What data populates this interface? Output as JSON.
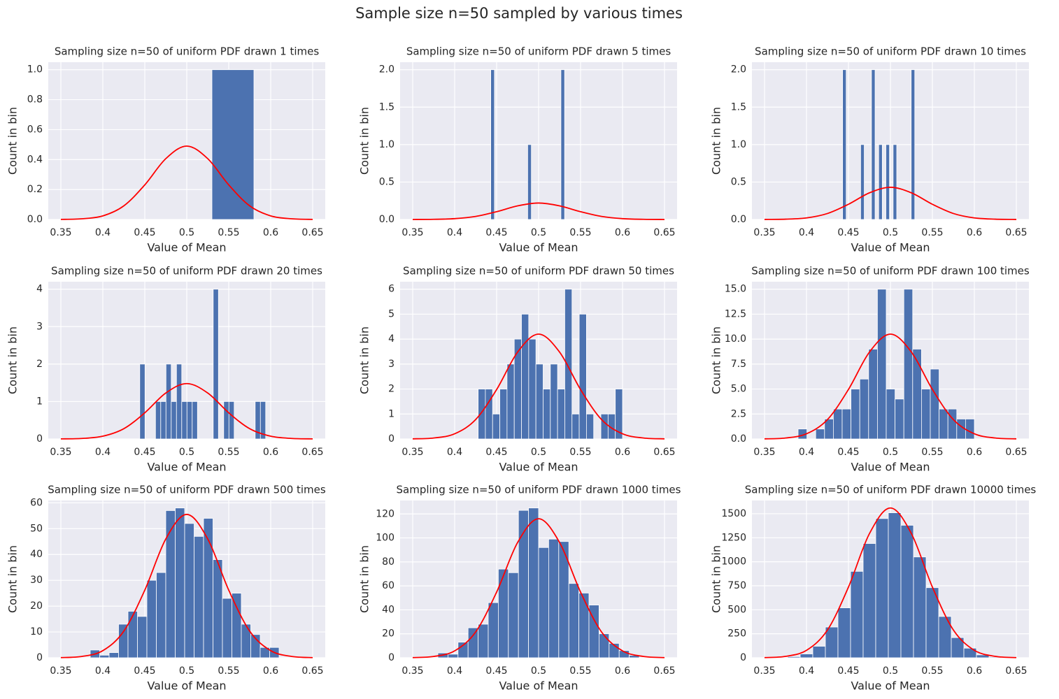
{
  "title": "Sample size n=50 sampled by various times",
  "chart_data": [
    {
      "type": "histogram",
      "title": "Sampling size n=50 of uniform PDF drawn 1 times",
      "x_label": "Value of Mean",
      "y_label": "Count in bin",
      "color": "#4c72b0",
      "grid": true,
      "bins": [
        0.53,
        0.58
      ],
      "counts": [
        1
      ],
      "xlim": [
        0.335,
        0.665
      ],
      "xticks": [
        0.35,
        0.4,
        0.45,
        0.5,
        0.55,
        0.6,
        0.65
      ],
      "ylim": [
        0,
        1.05
      ],
      "yticks": [
        {
          "value": 0,
          "label": "0.0"
        },
        0.2,
        0.4,
        0.6,
        0.8,
        {
          "value": 1,
          "label": "1.0"
        }
      ],
      "line": {
        "color": "#ff0000",
        "x": [
          0.35,
          0.375,
          0.4,
          0.425,
          0.45,
          0.475,
          0.5,
          0.525,
          0.55,
          0.575,
          0.6,
          0.625,
          0.65
        ],
        "values": [
          0.0006,
          0.0045,
          0.024,
          0.091,
          0.231,
          0.406,
          0.49,
          0.406,
          0.231,
          0.091,
          0.024,
          0.0045,
          0.0006
        ]
      }
    },
    {
      "type": "histogram",
      "title": "Sampling size n=50 of uniform PDF drawn 5 times",
      "x_label": "Value of Mean",
      "y_label": "Count in bin",
      "color": "#4c72b0",
      "grid": true,
      "bins": [
        0.443,
        0.4474,
        0.4518,
        0.4562,
        0.4606,
        0.465,
        0.4694,
        0.4738,
        0.4782,
        0.4826,
        0.487,
        0.4914,
        0.4958,
        0.5002,
        0.5046,
        0.509,
        0.5134,
        0.5178,
        0.5222,
        0.5266,
        0.531
      ],
      "counts": [
        2,
        0,
        0,
        0,
        0,
        0,
        0,
        0,
        0,
        0,
        1,
        0,
        0,
        0,
        0,
        0,
        0,
        0,
        0,
        2
      ],
      "xlim": [
        0.335,
        0.665
      ],
      "xticks": [
        0.35,
        0.4,
        0.45,
        0.5,
        0.55,
        0.6,
        0.65
      ],
      "ylim": [
        0,
        2.1
      ],
      "yticks": [
        {
          "value": 0,
          "label": "0.0"
        },
        0.5,
        {
          "value": 1,
          "label": "1.0"
        },
        1.5,
        {
          "value": 2,
          "label": "2.0"
        }
      ],
      "line": {
        "color": "#ff0000",
        "x": [
          0.35,
          0.375,
          0.4,
          0.425,
          0.45,
          0.475,
          0.5,
          0.525,
          0.55,
          0.575,
          0.6,
          0.625,
          0.65
        ],
        "values": [
          0.0003,
          0.002,
          0.011,
          0.041,
          0.104,
          0.182,
          0.22,
          0.182,
          0.104,
          0.041,
          0.011,
          0.002,
          0.0003
        ]
      }
    },
    {
      "type": "histogram",
      "title": "Sampling size n=50 of uniform PDF drawn 10 times",
      "x_label": "Value of Mean",
      "y_label": "Count in bin",
      "color": "#4c72b0",
      "grid": true,
      "bins": [
        0.443,
        0.4473,
        0.4516,
        0.4559,
        0.4602,
        0.4645,
        0.4688,
        0.4731,
        0.4774,
        0.4817,
        0.486,
        0.4903,
        0.4946,
        0.4989,
        0.5032,
        0.5075,
        0.5118,
        0.5161,
        0.5204,
        0.5247,
        0.529
      ],
      "counts": [
        2,
        0,
        0,
        0,
        0,
        1,
        0,
        0,
        2,
        0,
        1,
        0,
        1,
        0,
        1,
        0,
        0,
        0,
        0,
        2
      ],
      "xlim": [
        0.335,
        0.665
      ],
      "xticks": [
        0.35,
        0.4,
        0.45,
        0.5,
        0.55,
        0.6,
        0.65
      ],
      "ylim": [
        0,
        2.1
      ],
      "yticks": [
        {
          "value": 0,
          "label": "0.0"
        },
        0.5,
        {
          "value": 1,
          "label": "1.0"
        },
        1.5,
        {
          "value": 2,
          "label": "2.0"
        }
      ],
      "line": {
        "color": "#ff0000",
        "x": [
          0.35,
          0.375,
          0.4,
          0.425,
          0.45,
          0.475,
          0.5,
          0.525,
          0.55,
          0.575,
          0.6,
          0.625,
          0.65
        ],
        "values": [
          0.0005,
          0.004,
          0.021,
          0.08,
          0.203,
          0.356,
          0.43,
          0.356,
          0.203,
          0.08,
          0.021,
          0.004,
          0.0005
        ]
      }
    },
    {
      "type": "histogram",
      "title": "Sampling size n=50 of uniform PDF drawn 20 times",
      "x_label": "Value of Mean",
      "y_label": "Count in bin",
      "color": "#4c72b0",
      "grid": true,
      "bins": [
        0.444,
        0.45025,
        0.4565,
        0.46275,
        0.469,
        0.47525,
        0.4815,
        0.48775,
        0.494,
        0.50025,
        0.5065,
        0.51275,
        0.519,
        0.52525,
        0.5315,
        0.53775,
        0.544,
        0.55025,
        0.5565,
        0.56275,
        0.569,
        0.57525,
        0.5815,
        0.58775,
        0.594
      ],
      "counts": [
        2,
        0,
        0,
        1,
        1,
        2,
        1,
        2,
        1,
        1,
        1,
        0,
        0,
        0,
        4,
        0,
        1,
        1,
        0,
        0,
        0,
        0,
        1,
        1
      ],
      "xlim": [
        0.335,
        0.665
      ],
      "xticks": [
        0.35,
        0.4,
        0.45,
        0.5,
        0.55,
        0.6,
        0.65
      ],
      "ylim": [
        0,
        4.2
      ],
      "yticks": [
        0,
        1,
        2,
        3,
        4
      ],
      "line": {
        "color": "#ff0000",
        "x": [
          0.35,
          0.375,
          0.4,
          0.425,
          0.45,
          0.475,
          0.5,
          0.525,
          0.55,
          0.575,
          0.6,
          0.625,
          0.65
        ],
        "values": [
          0.002,
          0.014,
          0.074,
          0.274,
          0.699,
          1.227,
          1.48,
          1.227,
          0.699,
          0.274,
          0.074,
          0.014,
          0.002
        ]
      }
    },
    {
      "type": "histogram",
      "title": "Sampling size n=50 of uniform PDF drawn 50 times",
      "x_label": "Value of Mean",
      "y_label": "Count in bin",
      "color": "#4c72b0",
      "grid": true,
      "bins": [
        0.428,
        0.4366,
        0.4452,
        0.4538,
        0.4624,
        0.471,
        0.4796,
        0.4882,
        0.4968,
        0.5054,
        0.514,
        0.5226,
        0.5312,
        0.5398,
        0.5484,
        0.557,
        0.5656,
        0.5742,
        0.5828,
        0.5914,
        0.6
      ],
      "counts": [
        2,
        2,
        1,
        2,
        3,
        4,
        5,
        4,
        3,
        2,
        3,
        2,
        6,
        1,
        5,
        1,
        0,
        1,
        1,
        2
      ],
      "xlim": [
        0.335,
        0.665
      ],
      "xticks": [
        0.35,
        0.4,
        0.45,
        0.5,
        0.55,
        0.6,
        0.65
      ],
      "ylim": [
        0,
        6.3
      ],
      "yticks": [
        0,
        1,
        2,
        3,
        4,
        5,
        6
      ],
      "line": {
        "color": "#ff0000",
        "x": [
          0.35,
          0.375,
          0.4,
          0.425,
          0.45,
          0.475,
          0.5,
          0.525,
          0.55,
          0.575,
          0.6,
          0.625,
          0.65
        ],
        "values": [
          0.005,
          0.039,
          0.209,
          0.777,
          1.98,
          3.48,
          4.2,
          3.48,
          1.98,
          0.777,
          0.209,
          0.039,
          0.005
        ]
      }
    },
    {
      "type": "histogram",
      "title": "Sampling size n=50 of uniform PDF drawn 100 times",
      "x_label": "Value of Mean",
      "y_label": "Count in bin",
      "color": "#4c72b0",
      "grid": true,
      "bins": [
        0.39,
        0.4005,
        0.411,
        0.4215,
        0.432,
        0.4425,
        0.453,
        0.4635,
        0.474,
        0.4845,
        0.495,
        0.5055,
        0.516,
        0.5265,
        0.537,
        0.5475,
        0.558,
        0.5685,
        0.579,
        0.5895,
        0.6
      ],
      "counts": [
        1,
        0,
        1,
        2,
        3,
        3,
        5,
        6,
        9,
        15,
        5,
        4,
        15,
        9,
        5,
        7,
        3,
        3,
        2,
        2
      ],
      "xlim": [
        0.335,
        0.665
      ],
      "xticks": [
        0.35,
        0.4,
        0.45,
        0.5,
        0.55,
        0.6,
        0.65
      ],
      "ylim": [
        0,
        15.75
      ],
      "yticks": [
        {
          "value": 0,
          "label": "0.0"
        },
        2.5,
        {
          "value": 5,
          "label": "5.0"
        },
        7.5,
        {
          "value": 10,
          "label": "10.0"
        },
        12.5,
        {
          "value": 15,
          "label": "15.0"
        }
      ],
      "line": {
        "color": "#ff0000",
        "x": [
          0.35,
          0.375,
          0.4,
          0.425,
          0.45,
          0.475,
          0.5,
          0.525,
          0.55,
          0.575,
          0.6,
          0.625,
          0.65
        ],
        "values": [
          0.012,
          0.097,
          0.52,
          1.94,
          4.96,
          8.7,
          10.5,
          8.7,
          4.96,
          1.94,
          0.52,
          0.097,
          0.012
        ]
      }
    },
    {
      "type": "histogram",
      "title": "Sampling size n=50 of uniform PDF drawn 500 times",
      "x_label": "Value of Mean",
      "y_label": "Count in bin",
      "color": "#4c72b0",
      "grid": true,
      "bins": [
        0.385,
        0.39625,
        0.4075,
        0.41875,
        0.43,
        0.44125,
        0.4525,
        0.46375,
        0.475,
        0.48625,
        0.4975,
        0.50875,
        0.52,
        0.53125,
        0.5425,
        0.55375,
        0.565,
        0.57625,
        0.5875,
        0.59875,
        0.61
      ],
      "counts": [
        3,
        1,
        2,
        13,
        18,
        16,
        30,
        33,
        57,
        58,
        52,
        47,
        54,
        38,
        23,
        25,
        13,
        9,
        4,
        4
      ],
      "xlim": [
        0.335,
        0.665
      ],
      "xticks": [
        0.35,
        0.4,
        0.45,
        0.5,
        0.55,
        0.6,
        0.65
      ],
      "ylim": [
        0,
        60.9
      ],
      "yticks": [
        0,
        10,
        20,
        30,
        40,
        50,
        60
      ],
      "line": {
        "color": "#ff0000",
        "x": [
          0.35,
          0.375,
          0.4,
          0.425,
          0.45,
          0.475,
          0.5,
          0.525,
          0.55,
          0.575,
          0.6,
          0.625,
          0.65
        ],
        "values": [
          0.06,
          0.51,
          2.76,
          10.3,
          26.2,
          46,
          55.5,
          46,
          26.2,
          10.3,
          2.76,
          0.51,
          0.06
        ]
      }
    },
    {
      "type": "histogram",
      "title": "Sampling size n=50 of uniform PDF drawn 1000 times",
      "x_label": "Value of Mean",
      "y_label": "Count in bin",
      "color": "#4c72b0",
      "grid": true,
      "bins": [
        0.38,
        0.392,
        0.404,
        0.416,
        0.428,
        0.44,
        0.452,
        0.464,
        0.476,
        0.488,
        0.5,
        0.512,
        0.524,
        0.536,
        0.548,
        0.56,
        0.572,
        0.584,
        0.596,
        0.608,
        0.62
      ],
      "counts": [
        4,
        3,
        13,
        25,
        28,
        46,
        74,
        71,
        123,
        125,
        92,
        99,
        97,
        62,
        54,
        44,
        20,
        12,
        6,
        2
      ],
      "xlim": [
        0.335,
        0.665
      ],
      "xticks": [
        0.35,
        0.4,
        0.45,
        0.5,
        0.55,
        0.6,
        0.65
      ],
      "ylim": [
        0,
        131.25
      ],
      "yticks": [
        0,
        20,
        40,
        60,
        80,
        100,
        120
      ],
      "line": {
        "color": "#ff0000",
        "x": [
          0.35,
          0.375,
          0.4,
          0.425,
          0.45,
          0.475,
          0.5,
          0.525,
          0.55,
          0.575,
          0.6,
          0.625,
          0.65
        ],
        "values": [
          0.13,
          1.07,
          5.78,
          21.5,
          54.8,
          96.2,
          116,
          96.2,
          54.8,
          21.5,
          5.78,
          1.07,
          0.13
        ]
      }
    },
    {
      "type": "histogram",
      "title": "Sampling size n=50 of uniform PDF drawn 10000 times",
      "x_label": "Value of Mean",
      "y_label": "Count in bin",
      "color": "#4c72b0",
      "grid": true,
      "bins": [
        0.3775,
        0.3925,
        0.4075,
        0.4225,
        0.4375,
        0.4525,
        0.4675,
        0.4825,
        0.4975,
        0.5125,
        0.5275,
        0.5425,
        0.5575,
        0.5725,
        0.5875,
        0.6025,
        0.6175,
        0.6325
      ],
      "counts": [
        12,
        40,
        120,
        320,
        520,
        900,
        1190,
        1450,
        1510,
        1380,
        1050,
        730,
        430,
        210,
        100,
        30,
        8
      ],
      "xlim": [
        0.335,
        0.665
      ],
      "xticks": [
        0.35,
        0.4,
        0.45,
        0.5,
        0.55,
        0.6,
        0.65
      ],
      "ylim": [
        0,
        1638
      ],
      "yticks": [
        0,
        250,
        500,
        750,
        1000,
        1250,
        1500
      ],
      "line": {
        "color": "#ff0000",
        "x": [
          0.35,
          0.375,
          0.4,
          0.425,
          0.45,
          0.475,
          0.5,
          0.525,
          0.55,
          0.575,
          0.6,
          0.625,
          0.65
        ],
        "values": [
          1.8,
          14.4,
          77.7,
          289,
          736,
          1293,
          1560,
          1293,
          736,
          289,
          77.7,
          14.4,
          1.8
        ]
      }
    }
  ]
}
